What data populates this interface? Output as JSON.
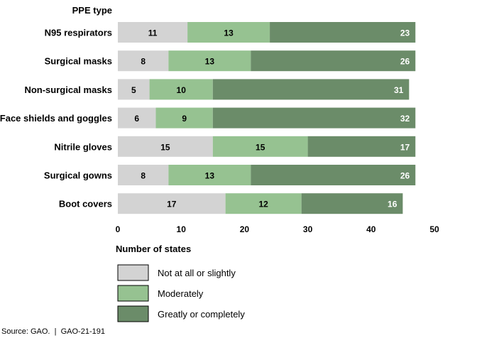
{
  "chart_data": {
    "type": "bar",
    "orientation": "horizontal",
    "stacked": true,
    "category_header": "PPE type",
    "categories": [
      "N95 respirators",
      "Surgical masks",
      "Non-surgical masks",
      "Face shields and goggles",
      "Nitrile gloves",
      "Surgical gowns",
      "Boot covers"
    ],
    "series": [
      {
        "name": "Not at all or slightly",
        "color": "#d3d3d3",
        "label_color": "#000000",
        "values": [
          11,
          8,
          5,
          6,
          15,
          8,
          17
        ]
      },
      {
        "name": "Moderately",
        "color": "#96c291",
        "label_color": "#000000",
        "values": [
          13,
          13,
          10,
          9,
          15,
          13,
          12
        ]
      },
      {
        "name": "Greatly or completely",
        "color": "#6b8c69",
        "label_color": "#ffffff",
        "values": [
          23,
          26,
          31,
          32,
          17,
          26,
          16
        ]
      }
    ],
    "xlabel": "Number of states",
    "xlim": [
      0,
      50
    ],
    "xticks": [
      "0",
      "10",
      "20",
      "30",
      "40",
      "50"
    ],
    "grid": false,
    "legend_position": "bottom-left"
  },
  "source": {
    "text": "Source: GAO.",
    "separator": "|",
    "report_id": "GAO-21-191"
  }
}
